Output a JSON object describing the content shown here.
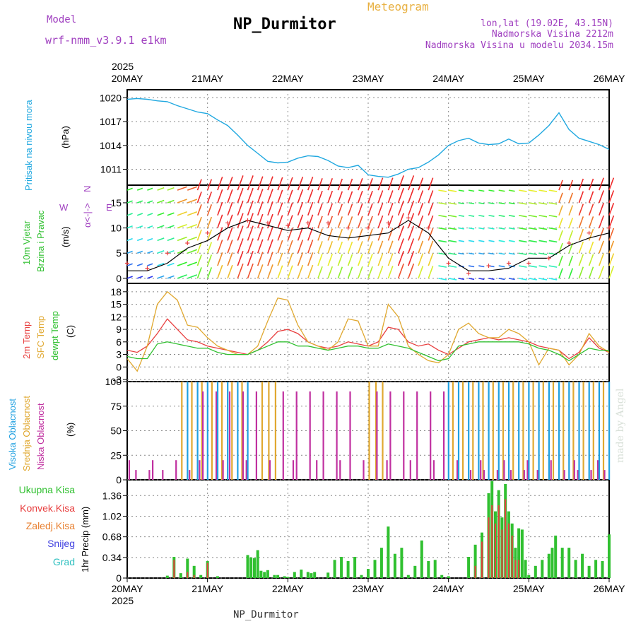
{
  "header": {
    "title": "NP_Durmitor",
    "model_label": "Model",
    "model_name": "wrf-nmm_v3.9.1 e1km",
    "meteogram_label": "Meteogram",
    "lonlat": "lon,lat (19.02E, 43.15N)",
    "visina": "Nadmorska Visina 2212m",
    "visina_model": "Nadmorska Visina u modelu 2034.15m",
    "year_top": "2025",
    "year_bottom": "2025",
    "station_bottom": "NP_Durmitor",
    "made_by": "made by Angel"
  },
  "colors": {
    "pressure": "#20a8e0",
    "temp2m": "#e84040",
    "sfc": "#e0a830",
    "dewpt": "#30c030",
    "high_cloud": "#20a0e0",
    "mid_cloud": "#e0a830",
    "low_cloud": "#c030a0",
    "total_precip": "#30c030",
    "conv_precip": "#e84040",
    "ice_precip": "#e88030",
    "snow": "#4040e0",
    "graupel": "#30c0c0",
    "wind_mean": "#000000",
    "gust": "#e84040"
  },
  "wind_compass": {
    "n": "N",
    "e": "E",
    "w": "W",
    "label": "α<-|->"
  },
  "chart_data": [
    {
      "type": "line",
      "name": "pressure",
      "ylabel_left": "Pritisak na nivou mora",
      "unit": "(hPa)",
      "x_ticks": [
        "20MAY",
        "21MAY",
        "22MAY",
        "23MAY",
        "24MAY",
        "25MAY",
        "26MAY"
      ],
      "y_ticks": [
        "1011",
        "1014",
        "1017",
        "1020"
      ],
      "ylim": [
        1009,
        1021
      ],
      "x_hours": [
        0,
        3,
        6,
        9,
        12,
        15,
        18,
        21,
        24,
        27,
        30,
        33,
        36,
        39,
        42,
        45,
        48,
        51,
        54,
        57,
        60,
        63,
        66,
        69,
        72,
        75,
        78,
        81,
        84,
        87,
        90,
        93,
        96,
        99,
        102,
        105,
        108,
        111,
        114,
        117,
        120,
        123,
        126,
        129,
        132,
        135,
        138,
        141,
        144
      ],
      "values": [
        1019.8,
        1019.9,
        1019.8,
        1019.6,
        1019.5,
        1019,
        1018.6,
        1018.2,
        1018,
        1017.2,
        1016.5,
        1015.3,
        1014,
        1013,
        1012,
        1011.8,
        1011.9,
        1012.4,
        1012.7,
        1012.6,
        1012.1,
        1011.4,
        1011.2,
        1011.5,
        1010.3,
        1010.1,
        1010,
        1010.4,
        1011,
        1011.2,
        1011.9,
        1012.8,
        1014,
        1014.6,
        1014.9,
        1014.3,
        1014.1,
        1014.2,
        1014.8,
        1014.2,
        1014.3,
        1015.3,
        1016.5,
        1018.1,
        1016,
        1014.9,
        1014.5,
        1014.1,
        1013.5
      ]
    },
    {
      "type": "line",
      "name": "wind",
      "ylabel_left": "10m Vjetar Brzina i Pravac",
      "unit": "(m/s)",
      "y_ticks": [
        "0",
        "5",
        "10",
        "15"
      ],
      "ylim": [
        -1,
        18.5
      ],
      "x_hours": [
        0,
        6,
        12,
        18,
        24,
        30,
        36,
        42,
        48,
        54,
        60,
        66,
        72,
        78,
        84,
        90,
        96,
        102,
        108,
        114,
        120,
        126,
        132,
        138,
        144
      ],
      "series": [
        {
          "name": "mean",
          "values": [
            1.5,
            1.5,
            3,
            6,
            7.5,
            10,
            11.5,
            10.5,
            9.5,
            10,
            8.5,
            8,
            8.5,
            9,
            11.5,
            9,
            4,
            1.5,
            1.5,
            2,
            4,
            4,
            6.5,
            8,
            9
          ]
        },
        {
          "name": "gust",
          "values": [
            3,
            2,
            5,
            7,
            9,
            11,
            11.5,
            11,
            10.5,
            11,
            11,
            10,
            10,
            11,
            12,
            10,
            3,
            1,
            2.5,
            3,
            3,
            4,
            7,
            9,
            10
          ]
        }
      ]
    },
    {
      "type": "line",
      "name": "temperature",
      "ylabel_left": "2m Temp / SFC Temp / dewpt Temp",
      "legend": [
        "2m Temp",
        "SFC Temp",
        "dewpt Temp"
      ],
      "unit": "(C)",
      "y_ticks": [
        "-3",
        "0",
        "3",
        "6",
        "9",
        "12",
        "15",
        "18"
      ],
      "ylim": [
        -3.5,
        20
      ],
      "x_hours": [
        0,
        3,
        6,
        9,
        12,
        15,
        18,
        21,
        24,
        27,
        30,
        33,
        36,
        39,
        42,
        45,
        48,
        51,
        54,
        57,
        60,
        63,
        66,
        69,
        72,
        75,
        78,
        81,
        84,
        87,
        90,
        93,
        96,
        99,
        102,
        105,
        108,
        111,
        114,
        117,
        120,
        123,
        126,
        129,
        132,
        135,
        138,
        141,
        144
      ],
      "series": [
        {
          "name": "2m Temp",
          "values": [
            4,
            3.5,
            5,
            8,
            11.5,
            9,
            6.5,
            6,
            5,
            4.5,
            4,
            3.5,
            3,
            4,
            6,
            8.5,
            9,
            8,
            6,
            5,
            4.5,
            5,
            6,
            5.5,
            5,
            6,
            9.5,
            9,
            6,
            5,
            5.5,
            4,
            3,
            4.5,
            6,
            6.5,
            7,
            6.5,
            7,
            6.5,
            6,
            5,
            4.5,
            4,
            2,
            3.5,
            7,
            4.5,
            3.5
          ]
        },
        {
          "name": "SFC Temp",
          "values": [
            2,
            -1,
            5,
            15,
            18,
            16,
            10,
            9.5,
            7,
            5,
            4,
            3,
            3,
            5,
            11,
            16.5,
            16,
            10,
            6,
            5,
            4,
            6,
            11.5,
            11,
            5,
            5,
            15,
            12,
            5,
            3,
            1.5,
            1,
            3,
            9,
            10.5,
            8,
            7,
            7,
            9,
            8,
            6,
            0.5,
            4.5,
            4,
            0.5,
            3,
            8,
            5,
            3.5
          ]
        },
        {
          "name": "dewpt Temp",
          "values": [
            2.5,
            2,
            2,
            5.5,
            6,
            5.5,
            5,
            4.5,
            4.5,
            3.5,
            3,
            3,
            3,
            4,
            5,
            6,
            6,
            5,
            5,
            4.5,
            4,
            4.5,
            5,
            5,
            4.5,
            4.5,
            5.5,
            5,
            4.5,
            3.5,
            2.5,
            1.5,
            2,
            5,
            5.5,
            6,
            6,
            6,
            6,
            6,
            5.5,
            4.5,
            4,
            3,
            1.5,
            3,
            4.5,
            4,
            4
          ]
        }
      ]
    },
    {
      "type": "bar",
      "name": "cloudiness",
      "ylabel_left": "Visoka Oblacnost / Srednja Oblacnost / Niska Oblacnost",
      "legend": [
        "Visoka Oblacnost",
        "Srednja Oblacnost",
        "Niska Oblacnost"
      ],
      "unit": "(%)",
      "y_ticks": [
        "0",
        "25",
        "50",
        "75",
        "100"
      ],
      "ylim": [
        0,
        100
      ]
    },
    {
      "type": "bar",
      "name": "precipitation",
      "ylabel_left": "1hr Precip (mm)",
      "legend": [
        "Ukupna Kisa",
        "Konvek.Kisa",
        "Zaledj.Kisa",
        "Snijeg",
        "Grad"
      ],
      "y_ticks": [
        "0",
        "0.34",
        "0.68",
        "1.02",
        "1.36"
      ],
      "ylim": [
        0,
        1.62
      ],
      "x_hours": [
        12,
        14,
        16,
        18,
        20,
        22,
        24,
        27,
        36,
        37,
        38,
        39,
        40,
        41,
        42,
        44,
        45,
        47,
        48,
        50,
        52,
        54,
        55,
        56,
        60,
        62,
        64,
        66,
        68,
        70,
        72,
        74,
        76,
        78,
        80,
        82,
        84,
        86,
        88,
        90,
        92,
        94,
        96,
        102,
        104,
        106,
        108,
        109,
        110,
        111,
        112,
        113,
        114,
        115,
        116,
        117,
        118,
        119,
        120,
        122,
        124,
        126,
        127,
        128,
        130,
        132,
        134,
        136,
        138,
        140,
        142,
        144
      ],
      "series": [
        {
          "name": "Ukupna Kisa",
          "values": [
            0.04,
            0.35,
            0.08,
            0.32,
            0.2,
            0.05,
            0.28,
            0.03,
            0.38,
            0.34,
            0.33,
            0.46,
            0.12,
            0.1,
            0.13,
            0.05,
            0.05,
            0.03,
            0.02,
            0.1,
            0.14,
            0.1,
            0.08,
            0.1,
            0.09,
            0.3,
            0.35,
            0.28,
            0.35,
            0.05,
            0.15,
            0.3,
            0.5,
            0.85,
            0.4,
            0.5,
            0.05,
            0.2,
            0.62,
            0.28,
            0.3,
            0.05,
            0.03,
            0.35,
            0.55,
            0.75,
            1.4,
            1.6,
            1.1,
            1.45,
            1.0,
            1.55,
            1.1,
            0.9,
            0.5,
            0.82,
            0.8,
            0.3,
            0.05,
            0.2,
            0.3,
            0.4,
            0.5,
            0.7,
            0.5,
            0.5,
            0.3,
            0.4,
            0.2,
            0.3,
            0.28,
            0.72
          ]
        },
        {
          "name": "Konvek.Kisa",
          "values": [
            0,
            0.3,
            0,
            0.1,
            0.05,
            0,
            0.25,
            0,
            0,
            0,
            0,
            0,
            0,
            0,
            0,
            0,
            0,
            0,
            0,
            0,
            0,
            0,
            0,
            0,
            0,
            0,
            0,
            0,
            0,
            0,
            0,
            0,
            0,
            0,
            0,
            0,
            0,
            0,
            0,
            0,
            0,
            0,
            0,
            0,
            0.2,
            0.6,
            1.0,
            1.2,
            0.9,
            1.2,
            0.8,
            1.3,
            0.9,
            0.7,
            0.3,
            0.3,
            0,
            0,
            0,
            0,
            0,
            0,
            0,
            0,
            0,
            0,
            0,
            0,
            0,
            0,
            0,
            0
          ]
        }
      ]
    }
  ]
}
